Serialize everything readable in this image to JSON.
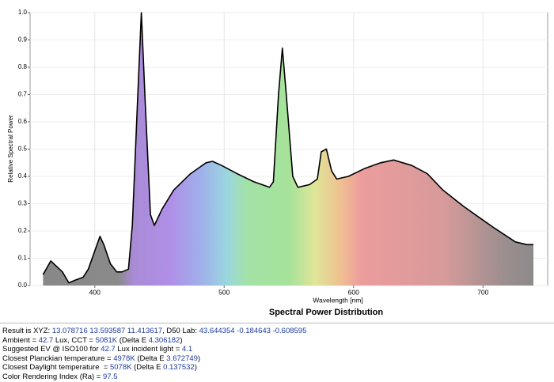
{
  "chart_data": {
    "type": "area-line",
    "title": "Spectral Power Distribution",
    "x_label": "Wavelength [nm]",
    "y_label": "Relative Spectral Power",
    "x": [
      360,
      366,
      375,
      380,
      385,
      391,
      395,
      404,
      407,
      412,
      417,
      421,
      426,
      429,
      433,
      436,
      439,
      443,
      446,
      452,
      461,
      474,
      486,
      491,
      498,
      510,
      523,
      535,
      538,
      542,
      545,
      548,
      553,
      557,
      566,
      572,
      575,
      579,
      583,
      587,
      596,
      609,
      621,
      631,
      645,
      657,
      669,
      685,
      697,
      709,
      725,
      734,
      739
    ],
    "values": [
      0.04,
      0.09,
      0.05,
      0.01,
      0.02,
      0.03,
      0.06,
      0.18,
      0.15,
      0.08,
      0.05,
      0.05,
      0.06,
      0.22,
      0.67,
      1.0,
      0.67,
      0.26,
      0.22,
      0.28,
      0.35,
      0.41,
      0.45,
      0.455,
      0.44,
      0.41,
      0.38,
      0.36,
      0.38,
      0.7,
      0.87,
      0.7,
      0.4,
      0.36,
      0.37,
      0.39,
      0.49,
      0.5,
      0.42,
      0.39,
      0.4,
      0.43,
      0.45,
      0.46,
      0.44,
      0.41,
      0.35,
      0.29,
      0.25,
      0.21,
      0.16,
      0.15,
      0.15
    ],
    "xlim": [
      350,
      750
    ],
    "xticks": [
      400,
      500,
      600,
      700
    ],
    "ylim": [
      0,
      1
    ],
    "yticks": [
      {
        "value": 0,
        "label": "0.0"
      },
      0.1,
      0.2,
      0.3,
      0.4,
      0.5,
      0.6,
      0.7,
      0.8,
      0.9,
      {
        "value": 1,
        "label": "1.0"
      }
    ],
    "grid": true,
    "color": "#000000"
  },
  "results": [
    [
      "Result is XYZ: ",
      "13.078716 13.593587 11.413617",
      ", D50 Lab: ",
      "43.644354 -0.184643 -0.608595"
    ],
    [
      "Ambient = ",
      "42.7",
      " Lux, CCT = ",
      "5081K",
      " (Delta E ",
      "4.306182",
      ")"
    ],
    [
      "Suggested EV @ ISO100 for ",
      "42.7",
      " Lux incident light = ",
      "4.1"
    ],
    [
      "Closest Planckian temperature = ",
      "4978K",
      " (Delta E ",
      "3.672749",
      ")"
    ],
    [
      "Closest Daylight temperature  = ",
      "5078K",
      " (Delta E ",
      "0.137532",
      ")"
    ],
    [
      "Color Rendering Index (Ra) = ",
      "97.5"
    ]
  ]
}
